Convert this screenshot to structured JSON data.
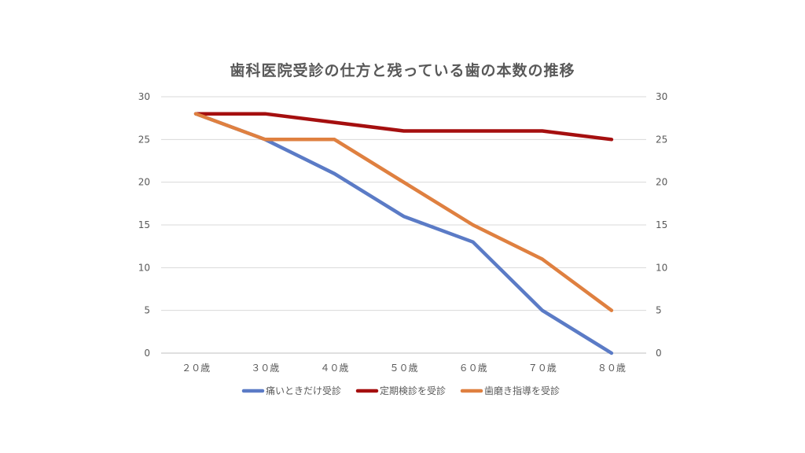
{
  "chart_data": {
    "type": "line",
    "title": "歯科医院受診の仕方と残っている歯の本数の推移",
    "categories": [
      "２０歳",
      "３０歳",
      "４０歳",
      "５０歳",
      "６０歳",
      "７０歳",
      "８０歳"
    ],
    "ylim": [
      0,
      30
    ],
    "yticks": [
      0,
      5,
      10,
      15,
      20,
      25,
      30
    ],
    "secondary_y_axis": true,
    "grid": true,
    "legend_position": "bottom",
    "series": [
      {
        "name": "痛いときだけ受診",
        "color": "#5b7bc6",
        "values": [
          28,
          25,
          21,
          16,
          13,
          5,
          0
        ]
      },
      {
        "name": "定期検診を受診",
        "color": "#a50f0f",
        "values": [
          28,
          28,
          27,
          26,
          26,
          26,
          25
        ]
      },
      {
        "name": "歯磨き指導を受診",
        "color": "#df8040",
        "values": [
          28,
          25,
          25,
          20,
          15,
          11,
          5
        ]
      }
    ]
  }
}
